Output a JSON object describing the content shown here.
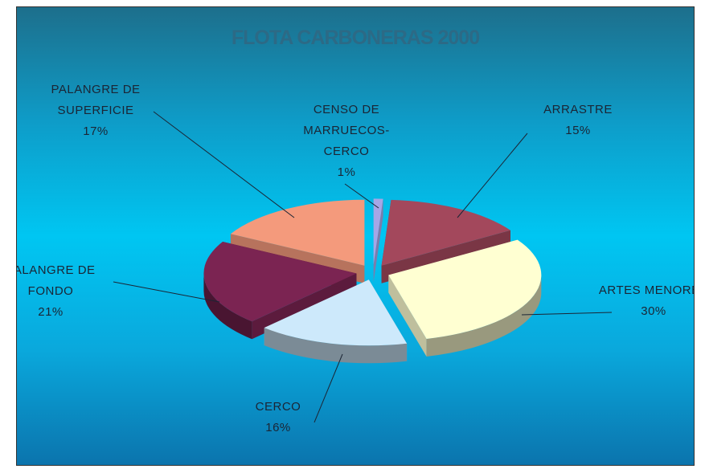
{
  "chart_data": {
    "type": "pie3d",
    "title": "FLOTA CARBONERAS 2000",
    "categories": [
      "CENSO DE MARRUECOS-CERCO",
      "ARRASTRE",
      "ARTES MENORES",
      "CERCO",
      "PALANGRE DE FONDO",
      "PALANGRE DE SUPERFICIE"
    ],
    "values": [
      1,
      15,
      30,
      16,
      21,
      17
    ],
    "value_labels": [
      "1%",
      "15%",
      "30%",
      "16%",
      "21%",
      "17%"
    ],
    "colors": [
      "#a6a6e6",
      "#a3485c",
      "#ffffd2",
      "#cde9fb",
      "#7b2452",
      "#f49a7c"
    ]
  }
}
